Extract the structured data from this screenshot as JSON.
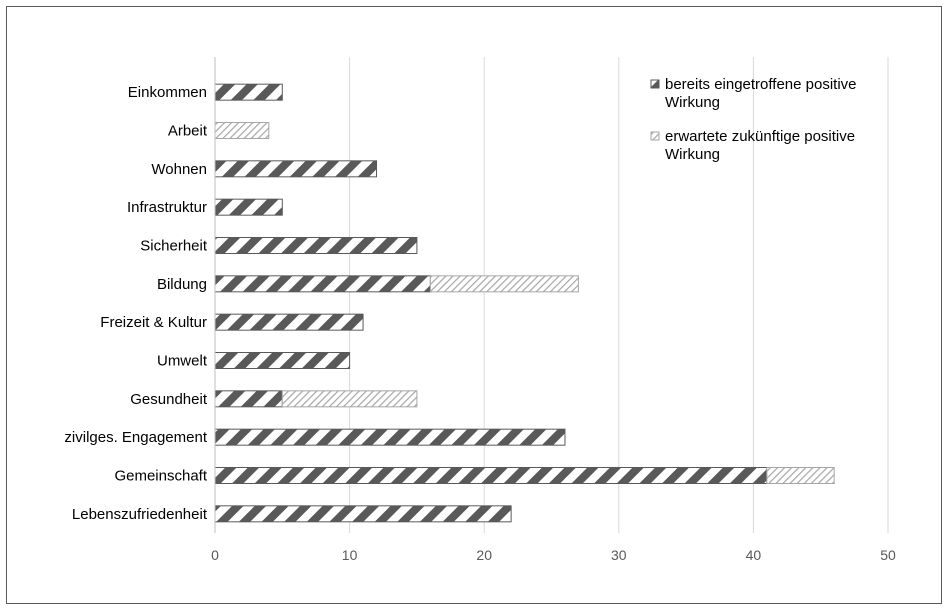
{
  "chart_data": {
    "type": "bar",
    "orientation": "horizontal",
    "stacked": true,
    "categories": [
      "Einkommen",
      "Arbeit",
      "Wohnen",
      "Infrastruktur",
      "Sicherheit",
      "Bildung",
      "Freizeit & Kultur",
      "Umwelt",
      "Gesundheit",
      "zivilges. Engagement",
      "Gemeinschaft",
      "Lebenszufriedenheit"
    ],
    "series": [
      {
        "name": "bereits eingetroffene positive Wirkung",
        "values": [
          5,
          0,
          12,
          5,
          15,
          16,
          11,
          10,
          5,
          26,
          41,
          22
        ],
        "color": "#595959",
        "pattern": "wide-diagonal"
      },
      {
        "name": "erwartete zukünftige positive Wirkung",
        "values": [
          0,
          4,
          0,
          0,
          0,
          11,
          0,
          0,
          10,
          0,
          5,
          0
        ],
        "color": "#a6a6a6",
        "pattern": "light-diagonal"
      }
    ],
    "xlim": [
      0,
      50
    ],
    "xticks": [
      0,
      10,
      20,
      30,
      40,
      50
    ],
    "grid": true,
    "legend": "top-right",
    "title": "",
    "xlabel": "",
    "ylabel": ""
  }
}
